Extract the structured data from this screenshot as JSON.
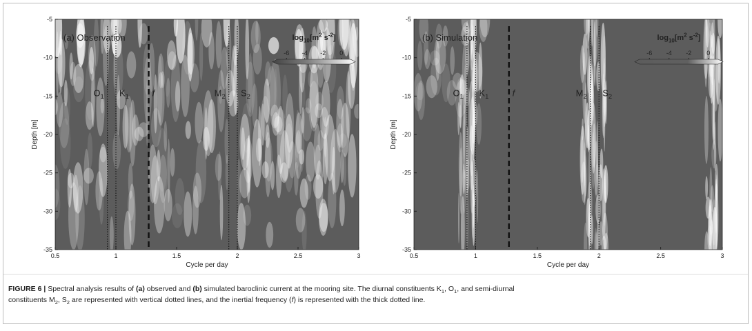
{
  "chart_data": [
    {
      "type": "heatmap",
      "title": "(a) Observation",
      "xlabel": "Cycle per day",
      "ylabel": "Depth [m]",
      "xlim": [
        0.5,
        3
      ],
      "xticks": [
        0.5,
        1,
        1.5,
        2,
        2.5,
        3
      ],
      "ylim": [
        -35,
        -5
      ],
      "yticks": [
        -5,
        -10,
        -15,
        -20,
        -25,
        -30,
        -35
      ],
      "lines": [
        {
          "name": [
            {
              "text": "O"
            },
            {
              "text": "1",
              "style": "sub"
            }
          ],
          "x": 0.93,
          "style": "dotted"
        },
        {
          "name": [
            {
              "text": "K"
            },
            {
              "text": "1",
              "style": "sub"
            }
          ],
          "x": 1.0,
          "style": "dotted"
        },
        {
          "name": [
            {
              "text": "f",
              "style": "italic"
            }
          ],
          "x": 1.27,
          "style": "dashed"
        },
        {
          "name": [
            {
              "text": "M"
            },
            {
              "text": "2",
              "style": "sub"
            }
          ],
          "x": 1.93,
          "style": "dotted"
        },
        {
          "name": [
            {
              "text": "S"
            },
            {
              "text": "2",
              "style": "sub"
            }
          ],
          "x": 2.0,
          "style": "dotted"
        }
      ],
      "colorbar": {
        "title": [
          {
            "text": "log"
          },
          {
            "text": "10",
            "style": "sub"
          },
          {
            "text": "[m"
          },
          {
            "text": "2",
            "style": "sup"
          },
          {
            "text": " s"
          },
          {
            "text": "-2",
            "style": "sup"
          },
          {
            "text": "]"
          }
        ],
        "lim": [
          -7,
          1
        ],
        "ticks": [
          -6,
          -4,
          -2,
          0
        ]
      }
    },
    {
      "type": "heatmap",
      "title": "(b) Simulation",
      "xlabel": "Cycle per day",
      "ylabel": "Depth [m]",
      "xlim": [
        0.5,
        3
      ],
      "xticks": [
        0.5,
        1,
        1.5,
        2,
        2.5,
        3
      ],
      "ylim": [
        -35,
        -5
      ],
      "yticks": [
        -5,
        -10,
        -15,
        -20,
        -25,
        -30,
        -35
      ],
      "lines": [
        {
          "name": [
            {
              "text": "O"
            },
            {
              "text": "1",
              "style": "sub"
            }
          ],
          "x": 0.93,
          "style": "dotted"
        },
        {
          "name": [
            {
              "text": "K"
            },
            {
              "text": "1",
              "style": "sub"
            }
          ],
          "x": 1.0,
          "style": "dotted"
        },
        {
          "name": [
            {
              "text": "f",
              "style": "italic"
            }
          ],
          "x": 1.27,
          "style": "dashed"
        },
        {
          "name": [
            {
              "text": "M"
            },
            {
              "text": "2",
              "style": "sub"
            }
          ],
          "x": 1.93,
          "style": "dotted"
        },
        {
          "name": [
            {
              "text": "S"
            },
            {
              "text": "2",
              "style": "sub"
            }
          ],
          "x": 2.0,
          "style": "dotted"
        }
      ],
      "colorbar": {
        "title": [
          {
            "text": "log"
          },
          {
            "text": "10",
            "style": "sub"
          },
          {
            "text": "[m"
          },
          {
            "text": "2",
            "style": "sup"
          },
          {
            "text": " s"
          },
          {
            "text": "-2",
            "style": "sup"
          },
          {
            "text": "]"
          }
        ],
        "lim": [
          -7,
          1
        ],
        "ticks": [
          -6,
          -4,
          -2,
          0
        ]
      }
    }
  ],
  "caption": [
    [
      {
        "text": "FIGURE 6 |",
        "style": "bold"
      },
      {
        "text": " Spectral analysis results of "
      },
      {
        "text": "(a)",
        "style": "bold"
      },
      {
        "text": " observed and "
      },
      {
        "text": "(b)",
        "style": "bold"
      },
      {
        "text": " simulated baroclinic current at the mooring site. The diurnal constituents K"
      },
      {
        "text": "1",
        "style": "sub"
      },
      {
        "text": ", O"
      },
      {
        "text": "1",
        "style": "sub"
      },
      {
        "text": ", and semi-diurnal"
      }
    ],
    [
      {
        "text": "constituents M"
      },
      {
        "text": "2",
        "style": "sub"
      },
      {
        "text": ", S"
      },
      {
        "text": "2",
        "style": "sub"
      },
      {
        "text": " are represented with vertical dotted lines, and the inertial frequency ("
      },
      {
        "text": "f",
        "style": "italic"
      },
      {
        "text": ") is represented with the thick dotted line."
      }
    ]
  ]
}
